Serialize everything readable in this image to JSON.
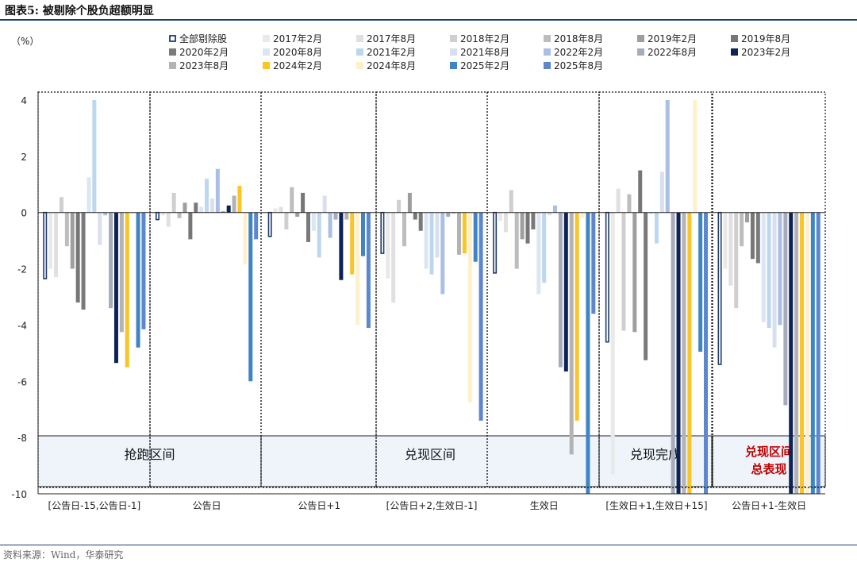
{
  "figure_title": "图表5:  被剔除个股负超额明显",
  "source": "资料来源：Wind，华泰研究",
  "colors": {
    "title_rule": "#1d3f66",
    "border": "#222222",
    "band_fill": "#eef4fa",
    "highlight_text": "#c00000"
  },
  "chart_data": {
    "type": "bar",
    "ylabel": "（%）",
    "ylim": [
      -10,
      4
    ],
    "yticks": [
      4,
      2,
      0,
      -2,
      -4,
      -6,
      -8,
      -10
    ],
    "ytick_labels": [
      "4",
      "2",
      "0",
      "-2",
      "-4",
      "-6",
      "-8",
      "-10"
    ],
    "categories": [
      "[公告日-15,公告日-1]",
      "公告日",
      "公告日+1",
      "[公告日+2,生效日-1]",
      "生效日",
      "[生效日+1,生效日+15]",
      "公告日+1-生效日"
    ],
    "series": [
      {
        "name": "全部剔除股",
        "color": "#ffffff",
        "outline": "#1f3b6b",
        "values": [
          -2.35,
          -0.25,
          -0.85,
          -1.45,
          -2.15,
          -4.6,
          -5.4
        ]
      },
      {
        "name": "2017年2月",
        "color": "#e9e9ea",
        "values": [
          -2.0,
          -0.1,
          0.15,
          -2.35,
          -0.3,
          -9.3,
          -2.0
        ]
      },
      {
        "name": "2017年8月",
        "color": "#e0e0e2",
        "values": [
          -2.3,
          -0.5,
          0.2,
          -3.2,
          -0.7,
          0.85,
          -2.6
        ]
      },
      {
        "name": "2018年2月",
        "color": "#cfcfd0",
        "values": [
          0.55,
          0.7,
          -0.6,
          0.45,
          0.8,
          -4.2,
          -3.4
        ]
      },
      {
        "name": "2018年8月",
        "color": "#bdbdbe",
        "values": [
          -1.2,
          -0.2,
          0.9,
          -1.2,
          -2.0,
          0.65,
          -1.2
        ]
      },
      {
        "name": "2019年2月",
        "color": "#9e9e9f",
        "values": [
          -2.0,
          0.35,
          -0.15,
          0.7,
          -0.95,
          -4.25,
          -0.35
        ]
      },
      {
        "name": "2019年8月",
        "color": "#777777",
        "values": [
          -3.2,
          -0.95,
          0.7,
          -0.25,
          -1.1,
          1.5,
          -1.65
        ]
      },
      {
        "name": "2020年2月",
        "color": "#7a7a7a",
        "values": [
          -3.45,
          0.35,
          -1.05,
          -0.65,
          -0.6,
          -5.25,
          -1.8
        ]
      },
      {
        "name": "2020年8月",
        "color": "#dbe6f4",
        "values": [
          1.25,
          0.2,
          -0.65,
          -2.0,
          -2.9,
          -0.05,
          -3.9
        ]
      },
      {
        "name": "2021年2月",
        "color": "#bcd7ee",
        "values": [
          4.0,
          1.2,
          -1.6,
          -2.2,
          -2.5,
          -1.1,
          -4.1
        ]
      },
      {
        "name": "2021年8月",
        "color": "#d8dfef",
        "values": [
          -1.15,
          0.5,
          0.6,
          -1.6,
          -0.1,
          1.45,
          -4.8
        ]
      },
      {
        "name": "2022年2月",
        "color": "#a9bfe3",
        "values": [
          -0.1,
          1.55,
          -0.9,
          -2.9,
          0.25,
          4.0,
          -4.0
        ]
      },
      {
        "name": "2022年8月",
        "color": "#a6acba",
        "values": [
          -3.4,
          0.05,
          -0.25,
          -0.15,
          -5.5,
          -10.0,
          -6.85
        ]
      },
      {
        "name": "2023年2月",
        "color": "#0d2256",
        "values": [
          -5.35,
          0.25,
          -2.4,
          0.0,
          -5.65,
          -10.0,
          -10.0
        ]
      },
      {
        "name": "2023年8月",
        "color": "#b3b3b4",
        "values": [
          -4.25,
          0.6,
          -0.25,
          -1.5,
          -8.6,
          -10.0,
          -10.0
        ]
      },
      {
        "name": "2024年2月",
        "color": "#fcc424",
        "values": [
          -5.5,
          0.95,
          -2.2,
          -1.45,
          -7.4,
          -10.0,
          -10.0
        ]
      },
      {
        "name": "2024年8月",
        "color": "#fff0c9",
        "values": [
          -0.05,
          -1.85,
          -4.0,
          -6.75,
          -0.2,
          4.0,
          -10.0
        ]
      },
      {
        "name": "2025年2月",
        "color": "#3e84c6",
        "values": [
          -4.8,
          -6.0,
          -1.55,
          -1.75,
          -10.0,
          -4.95,
          -10.0
        ]
      },
      {
        "name": "2025年8月",
        "color": "#5c87cc",
        "values": [
          -4.15,
          -0.95,
          -4.1,
          -7.4,
          -3.6,
          -10.0,
          -10.0
        ]
      }
    ],
    "zones": [
      {
        "label": "抢跑区间",
        "highlight": false
      },
      {
        "label": "兑现区间",
        "highlight": false
      },
      {
        "label": "兑现完成",
        "highlight": false
      },
      {
        "label_lines": [
          "兑现区间",
          "总表现"
        ],
        "highlight": true
      }
    ]
  }
}
